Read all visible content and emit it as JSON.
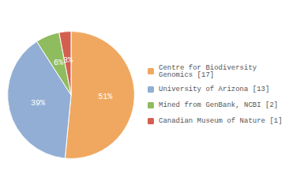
{
  "chart_data": {
    "type": "pie",
    "categories": [
      "Centre for Biodiversity\nGenomics [17]",
      "University of Arizona [13]",
      "Mined from GenBank, NCBI [2]",
      "Canadian Museum of Nature [1]"
    ],
    "values": [
      51,
      39,
      6,
      3
    ],
    "value_labels": [
      "51%",
      "39%",
      "6%",
      "3%"
    ],
    "colors": [
      "#f0a860",
      "#92aed4",
      "#8fbc5e",
      "#d45f4e"
    ],
    "data_labels": true,
    "legend": "right"
  }
}
